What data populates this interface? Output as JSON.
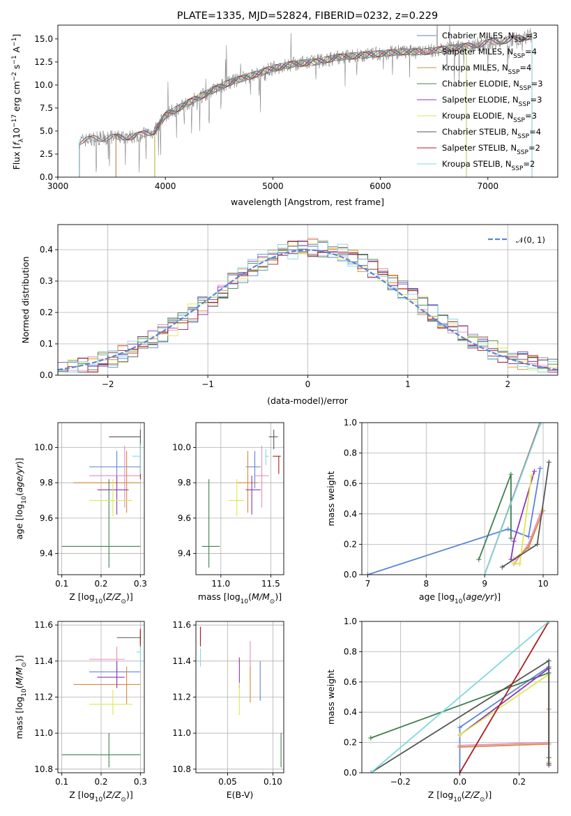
{
  "colors": {
    "Chabrier MILES": "#5b84d6",
    "Salpeter MILES": "#e88bc0",
    "Kroupa MILES": "#d5893a",
    "Chabrier ELODIE": "#3f7f4f",
    "Salpeter ELODIE": "#8b34b8",
    "Kroupa ELODIE": "#dbe94d",
    "Chabrier STELIB": "#555555",
    "Salpeter STELIB": "#b01b1b",
    "Kroupa STELIB": "#7dd9e0",
    "gaussian": "#5b84d6",
    "data": "#777777"
  },
  "chart_data": [
    {
      "type": "line",
      "title": "PLATE=1335, MJD=52824, FIBERID=0232, z=0.229",
      "xlabel": "wavelength [Angstrom, rest frame]",
      "ylabel": "Flux [f_λ 10^-17 erg cm^-2 s^-1 A^-1]",
      "xlim": [
        3000,
        7650
      ],
      "ylim": [
        0,
        16.5
      ],
      "xticks": [
        "3000",
        "4000",
        "5000",
        "6000",
        "7000"
      ],
      "yticks": [
        "0.0",
        "2.5",
        "5.0",
        "7.5",
        "10.0",
        "12.5",
        "15.0"
      ],
      "legend_position": "top-right",
      "legend": [
        {
          "model": "Chabrier MILES",
          "nssp": "3"
        },
        {
          "model": "Salpeter MILES",
          "nssp": "4"
        },
        {
          "model": "Kroupa MILES",
          "nssp": "4"
        },
        {
          "model": "Chabrier ELODIE",
          "nssp": "3"
        },
        {
          "model": "Salpeter ELODIE",
          "nssp": "3"
        },
        {
          "model": "Kroupa ELODIE",
          "nssp": "3"
        },
        {
          "model": "Chabrier STELIB",
          "nssp": "4"
        },
        {
          "model": "Salpeter STELIB",
          "nssp": "2"
        },
        {
          "model": "Kroupa STELIB",
          "nssp": "2"
        }
      ],
      "continuum": {
        "x": [
          3200,
          3350,
          3500,
          3700,
          3900,
          4000,
          4200,
          4400,
          4600,
          4800,
          5000,
          5200,
          5400,
          5600,
          5800,
          6000,
          6200,
          6400,
          6600,
          6800,
          7000,
          7200,
          7400
        ],
        "y": [
          3.9,
          4.2,
          4.3,
          4.4,
          5.0,
          6.7,
          8.0,
          9.2,
          10.3,
          11.0,
          11.8,
          12.3,
          12.5,
          13.0,
          13.2,
          13.4,
          13.6,
          13.6,
          13.9,
          14.2,
          14.6,
          14.9,
          15.3
        ]
      },
      "model_ranges": {
        "Chabrier MILES": [
          3540,
          7410
        ],
        "Salpeter MILES": [
          3540,
          7410
        ],
        "Kroupa MILES": [
          3540,
          7410
        ],
        "Chabrier ELODIE": [
          3900,
          6800
        ],
        "Salpeter ELODIE": [
          3900,
          6800
        ],
        "Kroupa ELODIE": [
          3900,
          6800
        ],
        "Chabrier STELIB": [
          3200,
          7410
        ],
        "Salpeter STELIB": [
          3200,
          7410
        ],
        "Kroupa STELIB": [
          3200,
          7410
        ]
      }
    },
    {
      "type": "histogram",
      "xlabel": "(data-model)/error",
      "ylabel": "Normed distribution",
      "xlim": [
        -2.5,
        2.5
      ],
      "ylim": [
        0,
        0.48
      ],
      "xticks": [
        "−2",
        "−1",
        "0",
        "1",
        "2"
      ],
      "yticks": [
        "0.0",
        "0.1",
        "0.2",
        "0.3",
        "0.4"
      ],
      "legend_label": "𝒩(0, 1)",
      "legend_position": "top-right",
      "bin_width": 0.1,
      "series_peak": 0.44
    },
    {
      "type": "errorbar",
      "xlabel": "Z [log10(Z/Z⊙)]",
      "ylabel": "age  [log10(age/yr)]",
      "xlim": [
        0.09,
        0.31
      ],
      "ylim": [
        9.28,
        10.14
      ],
      "xticks": [
        "0.1",
        "0.2",
        "0.3"
      ],
      "yticks": [
        "9.4",
        "9.6",
        "9.8",
        "10.0"
      ],
      "points": [
        {
          "model": "Chabrier MILES",
          "x": 0.24,
          "xerr": [
            0.17,
            0.3
          ],
          "y": 9.89,
          "yerr": [
            9.77,
            9.98
          ]
        },
        {
          "model": "Salpeter MILES",
          "x": 0.26,
          "xerr": [
            0.17,
            0.3
          ],
          "y": 9.84,
          "yerr": [
            9.66,
            10.01
          ]
        },
        {
          "model": "Kroupa MILES",
          "x": 0.265,
          "xerr": [
            0.13,
            0.3
          ],
          "y": 9.8,
          "yerr": [
            9.63,
            9.98
          ]
        },
        {
          "model": "Chabrier ELODIE",
          "x": 0.22,
          "xerr": [
            0.1,
            0.3
          ],
          "y": 9.44,
          "yerr": [
            9.32,
            9.82
          ]
        },
        {
          "model": "Salpeter ELODIE",
          "x": 0.24,
          "xerr": [
            0.19,
            0.27
          ],
          "y": 9.76,
          "yerr": [
            9.62,
            9.84
          ]
        },
        {
          "model": "Kroupa ELODIE",
          "x": 0.23,
          "xerr": [
            0.17,
            0.28
          ],
          "y": 9.7,
          "yerr": [
            9.61,
            9.82
          ]
        },
        {
          "model": "Chabrier STELIB",
          "x": 0.3,
          "xerr": [
            0.22,
            0.3
          ],
          "y": 10.06,
          "yerr": [
            9.99,
            10.1
          ]
        },
        {
          "model": "Salpeter STELIB",
          "x": 0.3,
          "xerr": [
            0.3,
            0.3
          ],
          "y": 9.95,
          "yerr": [
            9.82,
            10.02
          ]
        },
        {
          "model": "Kroupa STELIB",
          "x": 0.3,
          "xerr": [
            0.28,
            0.3
          ],
          "y": 9.95,
          "yerr": [
            9.85,
            10.02
          ]
        }
      ]
    },
    {
      "type": "errorbar",
      "xlabel": "mass [log10(M/M⊙)]",
      "ylabel": "",
      "xlim": [
        10.75,
        11.63
      ],
      "ylim": [
        9.28,
        10.14
      ],
      "xticks": [
        "11.0",
        "11.5"
      ],
      "yticks": [
        "9.4",
        "9.6",
        "9.8",
        "10.0"
      ],
      "points": [
        {
          "model": "Chabrier MILES",
          "x": 11.34,
          "xerr": [
            11.25,
            11.4
          ],
          "y": 9.89,
          "yerr": [
            9.77,
            9.98
          ]
        },
        {
          "model": "Salpeter MILES",
          "x": 11.41,
          "xerr": [
            11.34,
            11.48
          ],
          "y": 9.84,
          "yerr": [
            9.66,
            10.01
          ]
        },
        {
          "model": "Kroupa MILES",
          "x": 11.27,
          "xerr": [
            11.16,
            11.37
          ],
          "y": 9.8,
          "yerr": [
            9.63,
            9.98
          ]
        },
        {
          "model": "Chabrier ELODIE",
          "x": 10.88,
          "xerr": [
            10.81,
            10.99
          ],
          "y": 9.44,
          "yerr": [
            9.32,
            9.82
          ]
        },
        {
          "model": "Salpeter ELODIE",
          "x": 11.31,
          "xerr": [
            11.25,
            11.4
          ],
          "y": 9.76,
          "yerr": [
            9.62,
            9.84
          ]
        },
        {
          "model": "Kroupa ELODIE",
          "x": 11.16,
          "xerr": [
            11.08,
            11.23
          ],
          "y": 9.7,
          "yerr": [
            9.61,
            9.82
          ]
        },
        {
          "model": "Chabrier STELIB",
          "x": 11.53,
          "xerr": [
            11.48,
            11.57
          ],
          "y": 10.06,
          "yerr": [
            9.99,
            10.1
          ]
        },
        {
          "model": "Salpeter STELIB",
          "x": 11.58,
          "xerr": [
            11.52,
            11.6
          ],
          "y": 9.95,
          "yerr": [
            9.85,
            9.95
          ]
        },
        {
          "model": "Kroupa STELIB",
          "x": 11.45,
          "xerr": [
            11.45,
            11.48
          ],
          "y": 9.95,
          "yerr": [
            9.9,
            9.99
          ]
        }
      ]
    },
    {
      "type": "line",
      "xlabel": "age  [log10(age/yr)]",
      "ylabel": "mass weight",
      "xlim": [
        6.9,
        10.25
      ],
      "ylim": [
        0,
        1.0
      ],
      "xticks": [
        "7",
        "8",
        "9",
        "10"
      ],
      "yticks": [
        "0.0",
        "0.2",
        "0.4",
        "0.6",
        "0.8",
        "1.0"
      ],
      "series": [
        {
          "model": "Chabrier MILES",
          "x": [
            7.0,
            9.4,
            9.75,
            9.95
          ],
          "y": [
            0.0,
            0.3,
            0.25,
            0.7
          ]
        },
        {
          "model": "Salpeter MILES",
          "x": [
            9.5,
            9.75,
            9.95
          ],
          "y": [
            0.07,
            0.2,
            0.4
          ]
        },
        {
          "model": "Kroupa MILES",
          "x": [
            9.5,
            9.75,
            10.0
          ],
          "y": [
            0.1,
            0.18,
            0.42
          ]
        },
        {
          "model": "Chabrier ELODIE",
          "x": [
            8.9,
            9.45,
            9.45
          ],
          "y": [
            0.1,
            0.66,
            0.24
          ]
        },
        {
          "model": "Salpeter ELODIE",
          "x": [
            9.45,
            9.5,
            9.85
          ],
          "y": [
            0.1,
            0.22,
            0.68
          ]
        },
        {
          "model": "Kroupa ELODIE",
          "x": [
            9.5,
            9.6,
            9.8
          ],
          "y": [
            0.08,
            0.07,
            0.65
          ]
        },
        {
          "model": "Chabrier STELIB",
          "x": [
            9.3,
            9.9,
            10.1
          ],
          "y": [
            0.05,
            0.2,
            0.74
          ]
        },
        {
          "model": "Salpeter STELIB",
          "x": [
            9.0,
            9.95
          ],
          "y": [
            0.0,
            1.0
          ]
        },
        {
          "model": "Kroupa STELIB",
          "x": [
            9.0,
            9.95
          ],
          "y": [
            0.0,
            0.99
          ]
        }
      ]
    },
    {
      "type": "errorbar",
      "xlabel": "Z [log10(Z/Z⊙)]",
      "ylabel": "mass [log10(M/M⊙)]",
      "xlim": [
        0.09,
        0.31
      ],
      "ylim": [
        10.78,
        11.62
      ],
      "xticks": [
        "0.1",
        "0.2",
        "0.3"
      ],
      "yticks": [
        "10.8",
        "11.0",
        "11.2",
        "11.4",
        "11.6"
      ],
      "points": [
        {
          "model": "Chabrier MILES",
          "x": 0.24,
          "xerr": [
            0.17,
            0.3
          ],
          "y": 11.34,
          "yerr": [
            11.25,
            11.4
          ]
        },
        {
          "model": "Salpeter MILES",
          "x": 0.24,
          "xerr": [
            0.17,
            0.26
          ],
          "y": 11.41,
          "yerr": [
            11.34,
            11.48
          ]
        },
        {
          "model": "Kroupa MILES",
          "x": 0.265,
          "xerr": [
            0.13,
            0.3
          ],
          "y": 11.27,
          "yerr": [
            11.16,
            11.37
          ]
        },
        {
          "model": "Chabrier ELODIE",
          "x": 0.22,
          "xerr": [
            0.1,
            0.3
          ],
          "y": 10.88,
          "yerr": [
            10.81,
            11.0
          ]
        },
        {
          "model": "Salpeter ELODIE",
          "x": 0.24,
          "xerr": [
            0.19,
            0.26
          ],
          "y": 11.31,
          "yerr": [
            11.25,
            11.4
          ]
        },
        {
          "model": "Kroupa ELODIE",
          "x": 0.23,
          "xerr": [
            0.17,
            0.28
          ],
          "y": 11.16,
          "yerr": [
            11.1,
            11.24
          ]
        },
        {
          "model": "Chabrier STELIB",
          "x": 0.3,
          "xerr": [
            0.24,
            0.3
          ],
          "y": 11.53,
          "yerr": [
            11.48,
            11.57
          ]
        },
        {
          "model": "Salpeter STELIB",
          "x": 0.3,
          "xerr": [
            0.3,
            0.3
          ],
          "y": 11.52,
          "yerr": [
            11.49,
            11.58
          ]
        },
        {
          "model": "Kroupa STELIB",
          "x": 0.3,
          "xerr": [
            0.29,
            0.3
          ],
          "y": 11.45,
          "yerr": [
            11.37,
            11.48
          ]
        }
      ]
    },
    {
      "type": "errorbar",
      "xlabel": "E(B-V)",
      "ylabel": "",
      "xlim": [
        0.015,
        0.112
      ],
      "ylim": [
        10.78,
        11.62
      ],
      "xticks": [
        "0.05",
        "0.10"
      ],
      "yticks": [
        "10.8",
        "11.0",
        "11.2",
        "11.4",
        "11.6"
      ],
      "points": [
        {
          "model": "Chabrier MILES",
          "x": 0.086,
          "y": 11.29,
          "yerr": [
            11.18,
            11.4
          ]
        },
        {
          "model": "Salpeter MILES",
          "x": 0.075,
          "y": 11.41,
          "yerr": [
            11.3,
            11.51
          ]
        },
        {
          "model": "Kroupa MILES",
          "x": 0.075,
          "y": 11.27,
          "yerr": [
            11.17,
            11.37
          ]
        },
        {
          "model": "Chabrier ELODIE",
          "x": 0.109,
          "y": 10.9,
          "yerr": [
            10.81,
            11.0
          ]
        },
        {
          "model": "Salpeter ELODIE",
          "x": 0.063,
          "y": 11.33,
          "yerr": [
            11.25,
            11.42
          ]
        },
        {
          "model": "Kroupa ELODIE",
          "x": 0.063,
          "y": 11.16,
          "yerr": [
            11.1,
            11.28
          ]
        },
        {
          "model": "Chabrier STELIB",
          "x": 0.02,
          "y": 11.53,
          "yerr": [
            11.48,
            11.59
          ]
        },
        {
          "model": "Salpeter STELIB",
          "x": 0.02,
          "y": 11.53,
          "yerr": [
            11.49,
            11.59
          ]
        },
        {
          "model": "Kroupa STELIB",
          "x": 0.02,
          "y": 11.42,
          "yerr": [
            11.37,
            11.47
          ]
        }
      ]
    },
    {
      "type": "line",
      "xlabel": "Z [log10(Z/Z⊙)]",
      "ylabel": "mass weight",
      "xlim": [
        -0.33,
        0.33
      ],
      "ylim": [
        0,
        1.0
      ],
      "xticks": [
        "−0.2",
        "0.0",
        "0.2"
      ],
      "yticks": [
        "0.0",
        "0.2",
        "0.4",
        "0.6",
        "0.8",
        "1.0"
      ],
      "series": [
        {
          "model": "Chabrier MILES",
          "x": [
            0.0,
            0.0,
            0.3,
            0.3
          ],
          "y": [
            0.0,
            0.3,
            0.7,
            0.06
          ]
        },
        {
          "model": "Salpeter MILES",
          "x": [
            0.0,
            0.3,
            0.3
          ],
          "y": [
            0.18,
            0.2,
            0.07
          ]
        },
        {
          "model": "Kroupa MILES",
          "x": [
            0.0,
            0.3,
            0.3
          ],
          "y": [
            0.17,
            0.19,
            0.42
          ]
        },
        {
          "model": "Chabrier ELODIE",
          "x": [
            -0.3,
            0.3,
            0.3
          ],
          "y": [
            0.23,
            0.66,
            0.1
          ]
        },
        {
          "model": "Salpeter ELODIE",
          "x": [
            0.0,
            0.3,
            0.3
          ],
          "y": [
            0.25,
            0.69,
            0.06
          ]
        },
        {
          "model": "Kroupa ELODIE",
          "x": [
            0.0,
            0.3,
            0.3
          ],
          "y": [
            0.25,
            0.65,
            0.07
          ]
        },
        {
          "model": "Chabrier STELIB",
          "x": [
            -0.3,
            0.3,
            0.3
          ],
          "y": [
            0.0,
            0.74,
            0.05
          ]
        },
        {
          "model": "Salpeter STELIB",
          "x": [
            0.0,
            0.3
          ],
          "y": [
            0.0,
            1.0
          ]
        },
        {
          "model": "Kroupa STELIB",
          "x": [
            -0.3,
            0.3
          ],
          "y": [
            0.0,
            1.0
          ]
        }
      ]
    }
  ]
}
